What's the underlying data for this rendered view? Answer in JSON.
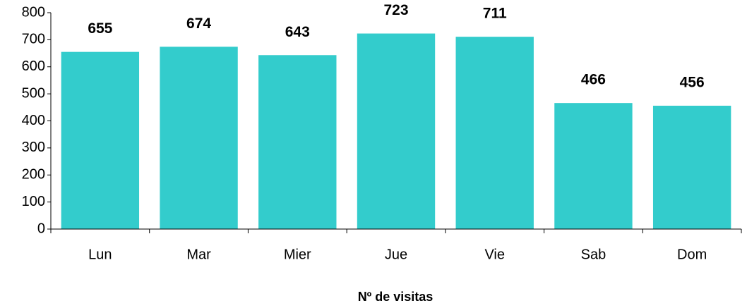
{
  "chart_data": {
    "type": "bar",
    "x_label": "Nº de visitas",
    "categories": [
      "Lun",
      "Mar",
      "Mier",
      "Jue",
      "Vie",
      "Sab",
      "Dom"
    ],
    "values": [
      655,
      674,
      643,
      723,
      711,
      466,
      456
    ],
    "color": "#33cccc",
    "ylim": [
      0,
      800
    ],
    "yticks": [
      0,
      100,
      200,
      300,
      400,
      500,
      600,
      700,
      800
    ],
    "grid": false
  }
}
